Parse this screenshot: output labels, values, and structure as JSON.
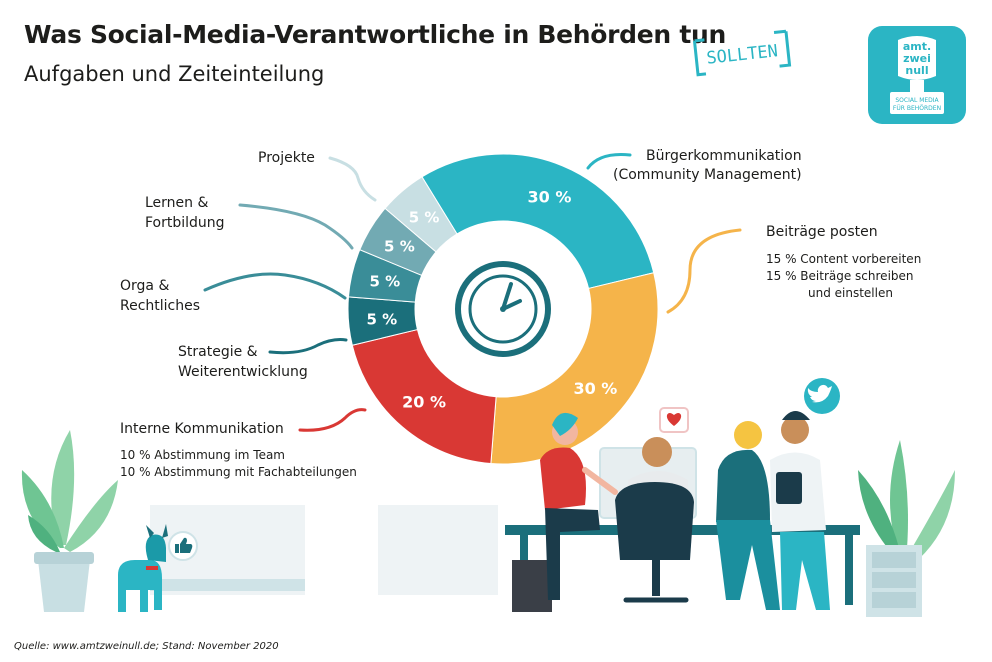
{
  "header": {
    "title": "Was Social-Media-Verantwortliche in Behörden tun",
    "stamp": "SOLLTEN",
    "subtitle": "Aufgaben und Zeiteinteilung"
  },
  "logo": {
    "line1": "amt.",
    "line2": "zwei",
    "line3": "null",
    "tagline1": "SOCIAL MEDIA",
    "tagline2": "FÜR BEHÖRDEN",
    "color": "#2bb5c4"
  },
  "chart_data": {
    "type": "pie",
    "categories": [
      "Bürgerkommunikation (Community Management)",
      "Beiträge posten",
      "Interne Kommunikation",
      "Strategie & Weiterentwicklung",
      "Orga & Rechtliches",
      "Lernen & Fortbildung",
      "Projekte"
    ],
    "values": [
      30,
      30,
      20,
      5,
      5,
      5,
      5
    ],
    "unit": "%",
    "slice_labels": [
      "30 %",
      "30 %",
      "20 %",
      "5 %",
      "5 %",
      "5 %",
      "5 %"
    ],
    "colors": [
      "#2bb5c4",
      "#f5b44a",
      "#d93834",
      "#1b6f7b",
      "#3a8d98",
      "#72aab3",
      "#c8dfe3"
    ],
    "donut": true,
    "center_icon": "clock-icon"
  },
  "labels": {
    "buerger": {
      "line1": "Bürgerkommunikation",
      "line2": "(Community Management)"
    },
    "beitraege": {
      "title": "Beiträge posten",
      "sub1": "15 % Content vorbereiten",
      "sub2": "15 % Beiträge schreiben",
      "sub3": "und einstellen"
    },
    "intern": {
      "title": "Interne Kommunikation",
      "sub1": "10 % Abstimmung im Team",
      "sub2": "10 % Abstimmung mit Fachabteilungen"
    },
    "strategie": {
      "line1": "Strategie &",
      "line2": "Weiterentwicklung"
    },
    "orga": {
      "line1": "Orga &",
      "line2": "Rechtliches"
    },
    "lernen": {
      "line1": "Lernen &",
      "line2": "Fortbildung"
    },
    "projekte": {
      "line1": "Projekte"
    }
  },
  "footer": {
    "source": "Quelle: www.amtzweinull.de; Stand: November 2020"
  },
  "illustration": {
    "icons": [
      "heart-icon",
      "twitter-bird-icon",
      "thumbs-up-icon"
    ]
  }
}
